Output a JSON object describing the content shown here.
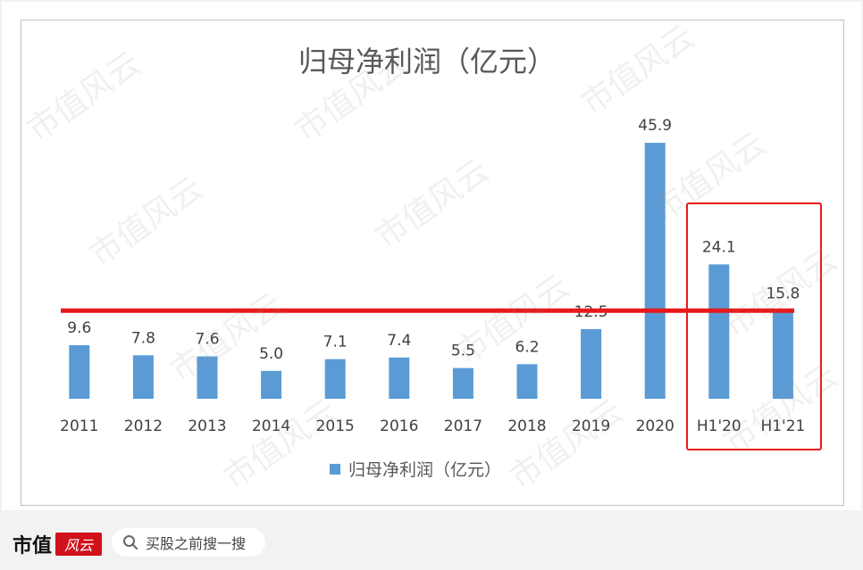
{
  "chart_data": {
    "type": "bar",
    "title": "归母净利润（亿元）",
    "categories": [
      "2011",
      "2012",
      "2013",
      "2014",
      "2015",
      "2016",
      "2017",
      "2018",
      "2019",
      "2020",
      "H1'20",
      "H1'21"
    ],
    "series": [
      {
        "name": "归母净利润（亿元）",
        "values": [
          9.6,
          7.8,
          7.6,
          5.0,
          7.1,
          7.4,
          5.5,
          6.2,
          12.5,
          45.9,
          24.1,
          15.8
        ]
      }
    ],
    "value_labels": [
      "9.6",
      "7.8",
      "7.6",
      "5.0",
      "7.1",
      "7.4",
      "5.5",
      "6.2",
      "12.5",
      "45.9",
      "24.1",
      "15.8"
    ],
    "ylim": [
      0,
      50
    ],
    "grid": false,
    "legend_position": "bottom",
    "bar_color": "#5b9bd5",
    "annotations": {
      "reference_line": {
        "value": 15.8,
        "color": "#e8191a"
      },
      "highlight_box": {
        "categories": [
          "H1'20",
          "H1'21"
        ],
        "color": "#e8191a"
      }
    }
  },
  "footer": {
    "brand_name": "市值",
    "brand_mark": "风云",
    "search_placeholder": "买股之前搜一搜"
  },
  "watermark": "市值风云"
}
